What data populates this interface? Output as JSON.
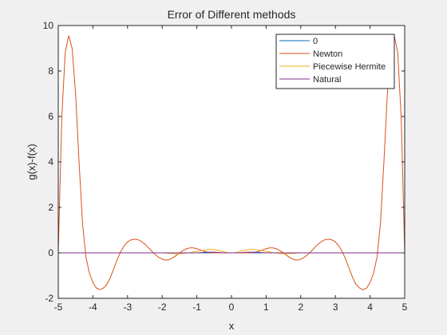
{
  "chart_data": {
    "type": "line",
    "title": "Error of Different methods",
    "xlabel": "x",
    "ylabel": "g(x)-f(x)",
    "xlim": [
      -5,
      5
    ],
    "ylim": [
      -2,
      10
    ],
    "xticks": [
      -5,
      -4,
      -3,
      -2,
      -1,
      0,
      1,
      2,
      3,
      4,
      5
    ],
    "yticks": [
      -2,
      0,
      2,
      4,
      6,
      8,
      10
    ],
    "grid": false,
    "legend_position": "top-right",
    "x": [
      -5,
      -4.9,
      -4.8,
      -4.7,
      -4.6,
      -4.5,
      -4.4,
      -4.3,
      -4.2,
      -4.1,
      -4,
      -3.9,
      -3.8,
      -3.7,
      -3.6,
      -3.5,
      -3.4,
      -3.3,
      -3.2,
      -3.1,
      -3,
      -2.9,
      -2.8,
      -2.7,
      -2.6,
      -2.5,
      -2.4,
      -2.3,
      -2.2,
      -2.1,
      -2,
      -1.9,
      -1.8,
      -1.7,
      -1.6,
      -1.5,
      -1.4,
      -1.3,
      -1.2,
      -1.1,
      -1,
      -0.9,
      -0.8,
      -0.7,
      -0.6,
      -0.5,
      -0.4,
      -0.3,
      -0.2,
      -0.1,
      0,
      0.1,
      0.2,
      0.3,
      0.4,
      0.5,
      0.6,
      0.7,
      0.8,
      0.9,
      1,
      1.1,
      1.2,
      1.3,
      1.4,
      1.5,
      1.6,
      1.7,
      1.8,
      1.9,
      2,
      2.1,
      2.2,
      2.3,
      2.4,
      2.5,
      2.6,
      2.7,
      2.8,
      2.9,
      3,
      3.1,
      3.2,
      3.3,
      3.4,
      3.5,
      3.6,
      3.7,
      3.8,
      3.9,
      4,
      4.1,
      4.2,
      4.3,
      4.4,
      4.5,
      4.6,
      4.7,
      4.8,
      4.9,
      5
    ],
    "series": [
      {
        "name": "0",
        "color": "#0072bd",
        "values": [
          0,
          0,
          0,
          0,
          0,
          0,
          0,
          0,
          0,
          0,
          0,
          0,
          0,
          0,
          0,
          0,
          0,
          0,
          0,
          0,
          0,
          0,
          0,
          0,
          0,
          0,
          0,
          0,
          0,
          0,
          0,
          0,
          0,
          0,
          0,
          0,
          0,
          0,
          0,
          0,
          0,
          0,
          0,
          0,
          0,
          0,
          0,
          0,
          0,
          0,
          0,
          0,
          0,
          0,
          0,
          0,
          0,
          0,
          0,
          0,
          0,
          0,
          0,
          0,
          0,
          0,
          0,
          0,
          0,
          0,
          0,
          0,
          0,
          0,
          0,
          0,
          0,
          0,
          0,
          0,
          0,
          0,
          0,
          0,
          0,
          0,
          0,
          0,
          0,
          0,
          0,
          0,
          0,
          0,
          0,
          0,
          0,
          0,
          0,
          0,
          0
        ]
      },
      {
        "name": "Newton",
        "color": "#d95319",
        "values": [
          0,
          5.9,
          8.8,
          9.55,
          9.0,
          7.0,
          4.0,
          1.3,
          -0.2,
          -0.9,
          -1.3,
          -1.55,
          -1.62,
          -1.55,
          -1.4,
          -1.1,
          -0.7,
          -0.3,
          0.05,
          0.3,
          0.48,
          0.57,
          0.6,
          0.58,
          0.5,
          0.38,
          0.23,
          0.07,
          -0.08,
          -0.2,
          -0.28,
          -0.32,
          -0.3,
          -0.22,
          -0.12,
          0,
          0.1,
          0.18,
          0.22,
          0.22,
          0.18,
          0.13,
          0.07,
          0.03,
          0.01,
          0,
          0,
          0,
          0,
          0,
          0,
          0,
          0,
          0,
          0,
          0,
          0.01,
          0.03,
          0.07,
          0.13,
          0.18,
          0.22,
          0.22,
          0.18,
          0.1,
          0,
          -0.12,
          -0.22,
          -0.3,
          -0.32,
          -0.28,
          -0.2,
          -0.08,
          0.07,
          0.23,
          0.38,
          0.5,
          0.58,
          0.6,
          0.57,
          0.48,
          0.3,
          0.05,
          -0.3,
          -0.7,
          -1.1,
          -1.4,
          -1.55,
          -1.62,
          -1.55,
          -1.3,
          -0.9,
          -0.2,
          1.3,
          4.0,
          7.0,
          9.0,
          9.55,
          8.8,
          5.9,
          0
        ]
      },
      {
        "name": "Piecewise Hermite",
        "color": "#edb120",
        "values": [
          0,
          0,
          0,
          0,
          0,
          0,
          0,
          0,
          0,
          0,
          0,
          0,
          0,
          0,
          0,
          0,
          0,
          0,
          0,
          0,
          0,
          0,
          0,
          0,
          0,
          0,
          0,
          0,
          0,
          0,
          0,
          -0.01,
          -0.02,
          -0.03,
          -0.04,
          -0.04,
          -0.03,
          -0.01,
          0.01,
          0.04,
          0.06,
          0.09,
          0.12,
          0.15,
          0.16,
          0.15,
          0.12,
          0.08,
          0.04,
          0.01,
          0,
          0.01,
          0.04,
          0.08,
          0.12,
          0.15,
          0.16,
          0.15,
          0.12,
          0.09,
          0.06,
          0.04,
          0.01,
          -0.01,
          -0.03,
          -0.04,
          -0.04,
          -0.03,
          -0.02,
          -0.01,
          0,
          0,
          0,
          0,
          0,
          0,
          0,
          0,
          0,
          0,
          0,
          0,
          0,
          0,
          0,
          0,
          0,
          0,
          0,
          0,
          0,
          0,
          0,
          0,
          0,
          0,
          0,
          0,
          0,
          0,
          0
        ]
      },
      {
        "name": "Natural",
        "color": "#7e2f8e",
        "values": [
          0,
          0,
          0,
          0,
          0,
          0,
          0,
          0,
          0,
          0,
          0,
          0,
          0,
          0,
          0,
          0,
          0,
          0,
          0,
          0,
          0,
          0,
          0,
          0,
          0,
          0,
          0,
          0,
          0,
          0,
          0,
          0,
          0,
          0,
          0,
          0,
          0,
          0,
          0,
          0,
          0,
          0.01,
          0.02,
          0.03,
          0.03,
          0.03,
          0.02,
          0.01,
          0,
          0,
          0,
          0,
          0,
          0.01,
          0.02,
          0.03,
          0.03,
          0.03,
          0.02,
          0.01,
          0,
          0,
          0,
          0,
          0,
          0,
          0,
          0,
          0,
          0,
          0,
          0,
          0,
          0,
          0,
          0,
          0,
          0,
          0,
          0,
          0,
          0,
          0,
          0,
          0,
          0,
          0,
          0,
          0,
          0,
          0,
          0,
          0,
          0,
          0,
          0,
          0,
          0,
          0,
          0,
          0
        ]
      }
    ]
  }
}
